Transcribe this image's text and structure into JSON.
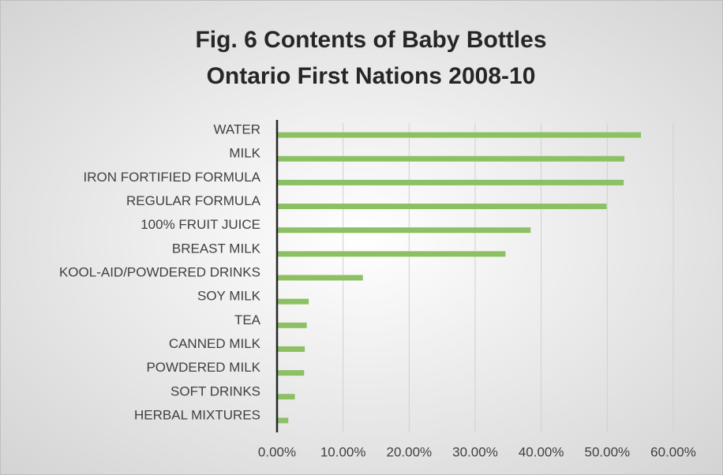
{
  "chart_data": {
    "type": "bar",
    "orientation": "horizontal",
    "title": "Fig. 6 Contents of Baby Bottles",
    "subtitle": "Ontario First Nations 2008-10",
    "categories": [
      "WATER",
      "MILK",
      "IRON FORTIFIED FORMULA",
      "REGULAR FORMULA",
      "100% FRUIT JUICE",
      "BREAST MILK",
      "KOOL-AID/POWDERED DRINKS",
      "SOY MILK",
      "TEA",
      "CANNED MILK",
      "POWDERED MILK",
      "SOFT DRINKS",
      "HERBAL MIXTURES"
    ],
    "values": [
      55.1,
      52.6,
      52.5,
      49.9,
      38.4,
      34.6,
      13.0,
      4.8,
      4.5,
      4.2,
      4.1,
      2.7,
      1.7
    ],
    "color": "#8cc063",
    "xlim": [
      0,
      60
    ],
    "xticks": [
      {
        "value": 0,
        "label": "0.00%"
      },
      {
        "value": 10,
        "label": "10.00%"
      },
      {
        "value": 20,
        "label": "20.00%"
      },
      {
        "value": 30,
        "label": "30.00%"
      },
      {
        "value": 40,
        "label": "40.00%"
      },
      {
        "value": 50,
        "label": "50.00%"
      },
      {
        "value": 60,
        "label": "60.00%"
      }
    ],
    "grid": true
  }
}
